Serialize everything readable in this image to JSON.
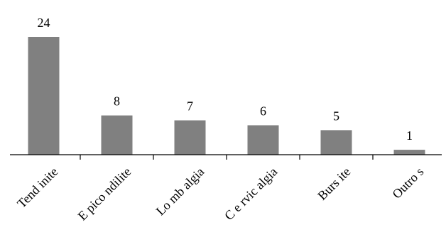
{
  "chart_data": {
    "type": "bar",
    "categories": [
      "Tend inite",
      "E pico ndilite",
      "Lo mb algia",
      "C e rvic algia",
      "Burs ite",
      "Outro s"
    ],
    "values": [
      24,
      8,
      7,
      6,
      5,
      1
    ],
    "title": "",
    "xlabel": "",
    "ylabel": "",
    "ylim": [
      0,
      24
    ],
    "grid": false,
    "legend": "none",
    "bar_color": "#808080"
  }
}
